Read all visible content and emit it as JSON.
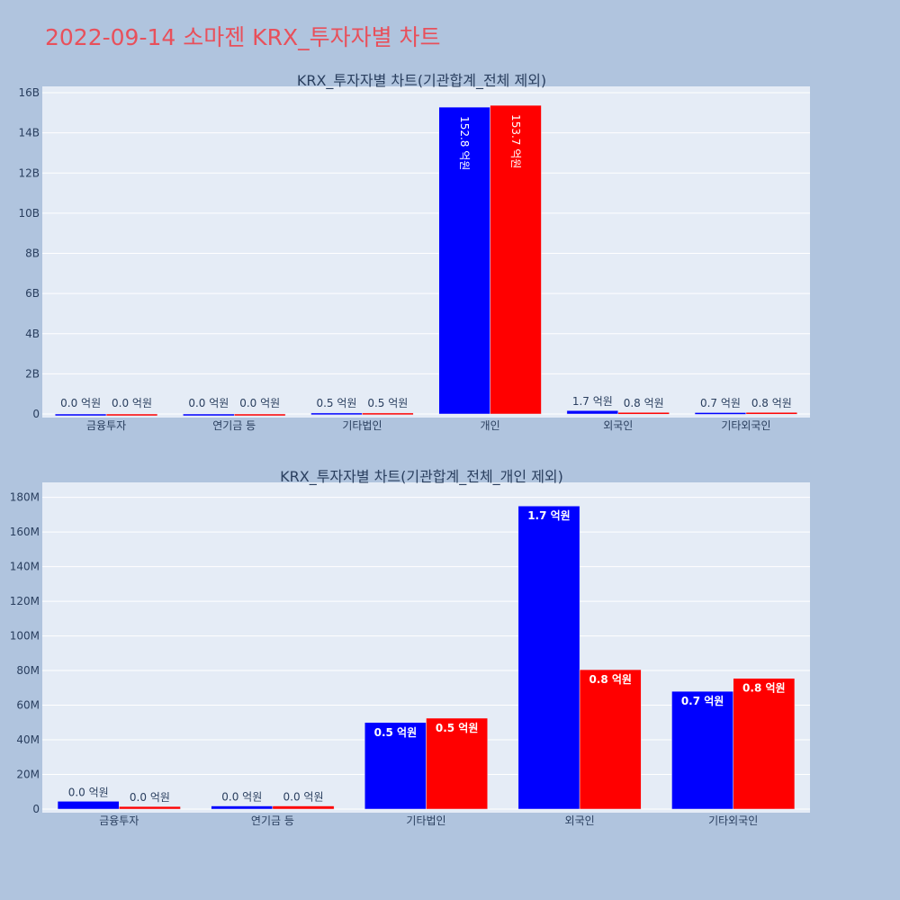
{
  "page": {
    "title": "2022-09-14 소마젠 KRX_투자자별 차트"
  },
  "colors": {
    "background": "#b0c4de",
    "plot_bg": "#e5ecf6",
    "grid": "#ffffff",
    "series_a": "#0000ff",
    "series_b": "#ff0000",
    "title": "#e8505b"
  },
  "chart_data": [
    {
      "type": "bar",
      "title": "KRX_투자자별 차트(기관합계_전체 제외)",
      "categories": [
        "금융투자",
        "연기금 등",
        "기타법인",
        "개인",
        "외국인",
        "기타외국인"
      ],
      "series": [
        {
          "values": [
            0,
            0,
            50000000.0,
            15280000000.0,
            170000000.0,
            70000000.0
          ],
          "labels": [
            "0.0 억원",
            "0.0 억원",
            "0.5 억원",
            "152.8 억원",
            "1.7 억원",
            "0.7 억원"
          ]
        },
        {
          "values": [
            0,
            0,
            50000000.0,
            15370000000.0,
            80000000.0,
            80000000.0
          ],
          "labels": [
            "0.0 억원",
            "0.0 억원",
            "0.5 억원",
            "153.7 억원",
            "0.8 억원",
            "0.8 억원"
          ]
        }
      ],
      "ylim": [
        0,
        16000000000.0
      ],
      "yticks": [
        0,
        2000000000.0,
        4000000000.0,
        6000000000.0,
        8000000000.0,
        10000000000.0,
        12000000000.0,
        14000000000.0,
        16000000000.0
      ],
      "ytick_labels": [
        "0",
        "2B",
        "4B",
        "6B",
        "8B",
        "10B",
        "12B",
        "14B",
        "16B"
      ],
      "grid": true
    },
    {
      "type": "bar",
      "title": "KRX_투자자별 차트(기관합계_전체_개인 제외)",
      "categories": [
        "금융투자",
        "연기금 등",
        "기타법인",
        "외국인",
        "기타외국인"
      ],
      "series": [
        {
          "values": [
            4500000.0,
            1800000.0,
            50000000.0,
            175000000.0,
            68000000.0
          ],
          "labels": [
            "0.0 억원",
            "0.0 억원",
            "0.5 억원",
            "1.7 억원",
            "0.7 억원"
          ]
        },
        {
          "values": [
            1500000.0,
            1800000.0,
            52500000.0,
            80500000.0,
            75500000.0
          ],
          "labels": [
            "0.0 억원",
            "0.0 억원",
            "0.5 억원",
            "0.8 억원",
            "0.8 억원"
          ]
        }
      ],
      "ylim": [
        0,
        185000000.0
      ],
      "yticks": [
        0,
        20000000.0,
        40000000.0,
        60000000.0,
        80000000.0,
        100000000.0,
        120000000.0,
        140000000.0,
        160000000.0,
        180000000.0
      ],
      "ytick_labels": [
        "0",
        "20M",
        "40M",
        "60M",
        "80M",
        "100M",
        "120M",
        "140M",
        "160M",
        "180M"
      ],
      "grid": true
    }
  ]
}
